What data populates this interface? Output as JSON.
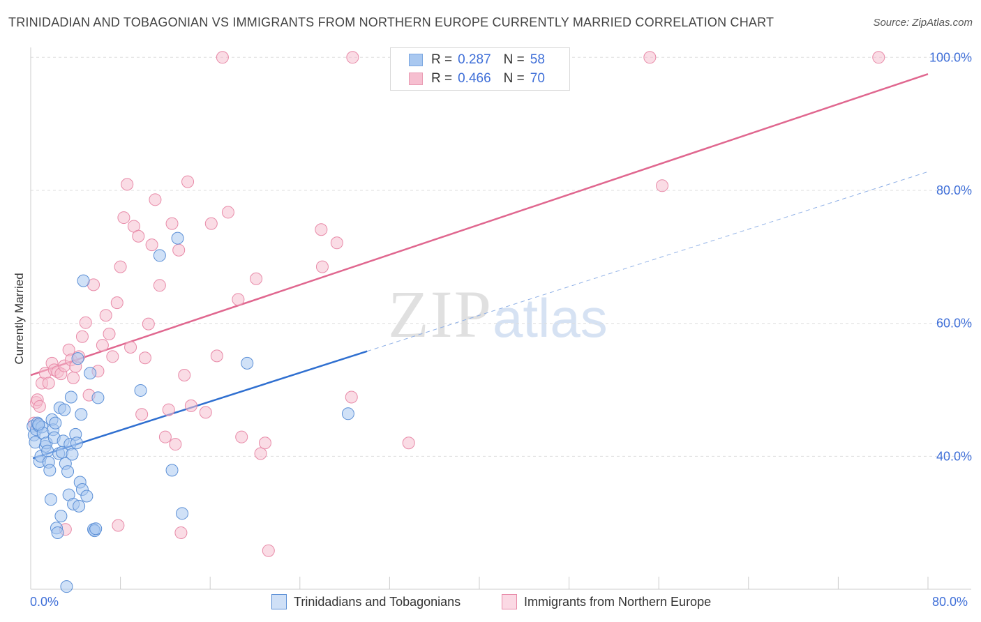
{
  "header": {
    "title": "TRINIDADIAN AND TOBAGONIAN VS IMMIGRANTS FROM NORTHERN EUROPE CURRENTLY MARRIED CORRELATION CHART",
    "source": "Source: ZipAtlas.com"
  },
  "watermark": {
    "zip": "ZIP",
    "atlas": "atlas"
  },
  "legend_top": {
    "rows": [
      {
        "r_label": "R =",
        "r_value": "0.287",
        "n_label": "N =",
        "n_value": "58",
        "color": "#a9c8f0",
        "border": "#7aa6e0"
      },
      {
        "r_label": "R =",
        "r_value": "0.466",
        "n_label": "N =",
        "n_value": "70",
        "color": "#f6bfd0",
        "border": "#e99ab2"
      }
    ]
  },
  "legend_bottom": {
    "items": [
      {
        "label": "Trinidadians and Tobagonians",
        "color": "#a9c8f0",
        "border": "#5b8fd6"
      },
      {
        "label": "Immigrants from Northern Europe",
        "color": "#f6bfd0",
        "border": "#e88aa8"
      }
    ]
  },
  "chart_data": {
    "type": "scatter",
    "title": "TRINIDADIAN AND TOBAGONIAN VS IMMIGRANTS FROM NORTHERN EUROPE CURRENTLY MARRIED CORRELATION CHART",
    "xlabel": "",
    "ylabel": "Currently Married",
    "xlim": [
      0,
      80
    ],
    "ylim": [
      20,
      101.5
    ],
    "x_tick_labels": [
      "0.0%",
      "80.0%"
    ],
    "y_ticks": [
      40,
      60,
      80,
      100
    ],
    "y_tick_labels": [
      "40.0%",
      "60.0%",
      "80.0%",
      "100.0%"
    ],
    "grid": true,
    "series": [
      {
        "name": "Trinidadians and Tobagonians",
        "color": "#a9c8f0",
        "stroke": "#5b8fd6",
        "line_color": "#2f6fd0",
        "R": 0.287,
        "N": 58,
        "trend": {
          "x0": 0.2,
          "y0": 39.7,
          "x1": 30.0,
          "y1": 55.8
        },
        "trend_extension": {
          "x0": 30.0,
          "y0": 55.8,
          "x1": 80.0,
          "y1": 82.8
        },
        "points": [
          [
            0.2,
            44.5
          ],
          [
            0.3,
            43.2
          ],
          [
            0.4,
            42.1
          ],
          [
            0.5,
            44.0
          ],
          [
            0.6,
            45.0
          ],
          [
            0.7,
            44.6
          ],
          [
            0.8,
            39.2
          ],
          [
            0.9,
            40.0
          ],
          [
            1.0,
            44.4
          ],
          [
            1.1,
            43.5
          ],
          [
            1.3,
            41.5
          ],
          [
            1.4,
            42.0
          ],
          [
            1.5,
            40.8
          ],
          [
            1.6,
            39.1
          ],
          [
            1.7,
            37.9
          ],
          [
            1.8,
            33.5
          ],
          [
            1.9,
            45.5
          ],
          [
            2.0,
            44.0
          ],
          [
            2.1,
            42.8
          ],
          [
            2.2,
            45.0
          ],
          [
            2.3,
            29.2
          ],
          [
            2.4,
            28.5
          ],
          [
            2.5,
            40.4
          ],
          [
            2.6,
            47.3
          ],
          [
            2.7,
            31.0
          ],
          [
            2.8,
            40.6
          ],
          [
            2.9,
            42.3
          ],
          [
            3.0,
            47.0
          ],
          [
            3.1,
            38.9
          ],
          [
            3.2,
            20.4
          ],
          [
            3.3,
            37.7
          ],
          [
            3.4,
            34.2
          ],
          [
            3.5,
            41.8
          ],
          [
            3.6,
            48.9
          ],
          [
            3.7,
            40.3
          ],
          [
            3.8,
            32.8
          ],
          [
            4.0,
            43.3
          ],
          [
            4.1,
            42.0
          ],
          [
            4.2,
            54.7
          ],
          [
            4.3,
            32.5
          ],
          [
            4.4,
            36.1
          ],
          [
            4.5,
            46.3
          ],
          [
            4.6,
            35.0
          ],
          [
            4.7,
            66.4
          ],
          [
            5.0,
            34.0
          ],
          [
            5.6,
            29.0
          ],
          [
            5.7,
            28.8
          ],
          [
            5.8,
            29.1
          ],
          [
            6.0,
            48.8
          ],
          [
            5.3,
            52.5
          ],
          [
            9.8,
            49.9
          ],
          [
            11.5,
            70.2
          ],
          [
            12.6,
            37.9
          ],
          [
            13.1,
            72.8
          ],
          [
            13.5,
            31.4
          ],
          [
            19.3,
            54.0
          ],
          [
            28.3,
            46.4
          ],
          [
            0.7,
            44.8
          ]
        ]
      },
      {
        "name": "Immigrants from Northern Europe",
        "color": "#f6bfd0",
        "stroke": "#e88aa8",
        "line_color": "#e0678f",
        "R": 0.466,
        "N": 70,
        "trend": {
          "x0": 0.0,
          "y0": 52.2,
          "x1": 80.0,
          "y1": 97.5
        },
        "points": [
          [
            0.3,
            45.0
          ],
          [
            0.5,
            48.1
          ],
          [
            0.6,
            48.5
          ],
          [
            0.8,
            47.5
          ],
          [
            1.0,
            51.0
          ],
          [
            1.3,
            52.5
          ],
          [
            1.6,
            51.0
          ],
          [
            1.9,
            54.0
          ],
          [
            2.1,
            53.0
          ],
          [
            2.4,
            52.7
          ],
          [
            2.7,
            52.4
          ],
          [
            3.0,
            53.6
          ],
          [
            3.4,
            56.0
          ],
          [
            3.6,
            54.5
          ],
          [
            3.8,
            51.8
          ],
          [
            4.0,
            53.5
          ],
          [
            4.3,
            55.0
          ],
          [
            4.6,
            58.0
          ],
          [
            4.9,
            60.1
          ],
          [
            5.2,
            49.2
          ],
          [
            5.6,
            65.8
          ],
          [
            6.0,
            52.8
          ],
          [
            6.4,
            56.7
          ],
          [
            6.7,
            61.2
          ],
          [
            7.0,
            58.4
          ],
          [
            7.3,
            55.0
          ],
          [
            7.7,
            63.1
          ],
          [
            8.0,
            68.5
          ],
          [
            8.3,
            75.9
          ],
          [
            8.6,
            80.9
          ],
          [
            8.9,
            56.4
          ],
          [
            9.2,
            74.6
          ],
          [
            9.6,
            73.1
          ],
          [
            9.9,
            46.3
          ],
          [
            10.2,
            54.8
          ],
          [
            10.5,
            59.9
          ],
          [
            10.8,
            71.8
          ],
          [
            11.1,
            78.6
          ],
          [
            11.5,
            65.7
          ],
          [
            12.0,
            42.9
          ],
          [
            12.3,
            47.0
          ],
          [
            12.6,
            75.0
          ],
          [
            12.9,
            41.8
          ],
          [
            13.2,
            71.0
          ],
          [
            13.4,
            28.5
          ],
          [
            13.7,
            52.2
          ],
          [
            14.0,
            81.3
          ],
          [
            14.3,
            47.6
          ],
          [
            15.6,
            46.6
          ],
          [
            16.1,
            75.0
          ],
          [
            16.6,
            55.1
          ],
          [
            17.6,
            76.7
          ],
          [
            18.5,
            63.6
          ],
          [
            18.8,
            42.9
          ],
          [
            20.1,
            66.7
          ],
          [
            20.5,
            40.4
          ],
          [
            20.9,
            42.0
          ],
          [
            21.2,
            25.8
          ],
          [
            25.9,
            74.1
          ],
          [
            26.0,
            68.5
          ],
          [
            27.3,
            72.1
          ],
          [
            28.6,
            48.9
          ],
          [
            33.7,
            42.0
          ],
          [
            17.1,
            100.0
          ],
          [
            28.7,
            100.0
          ],
          [
            55.2,
            100.0
          ],
          [
            56.3,
            80.7
          ],
          [
            75.6,
            100.0
          ],
          [
            7.8,
            29.6
          ],
          [
            3.1,
            29.0
          ]
        ]
      }
    ]
  }
}
